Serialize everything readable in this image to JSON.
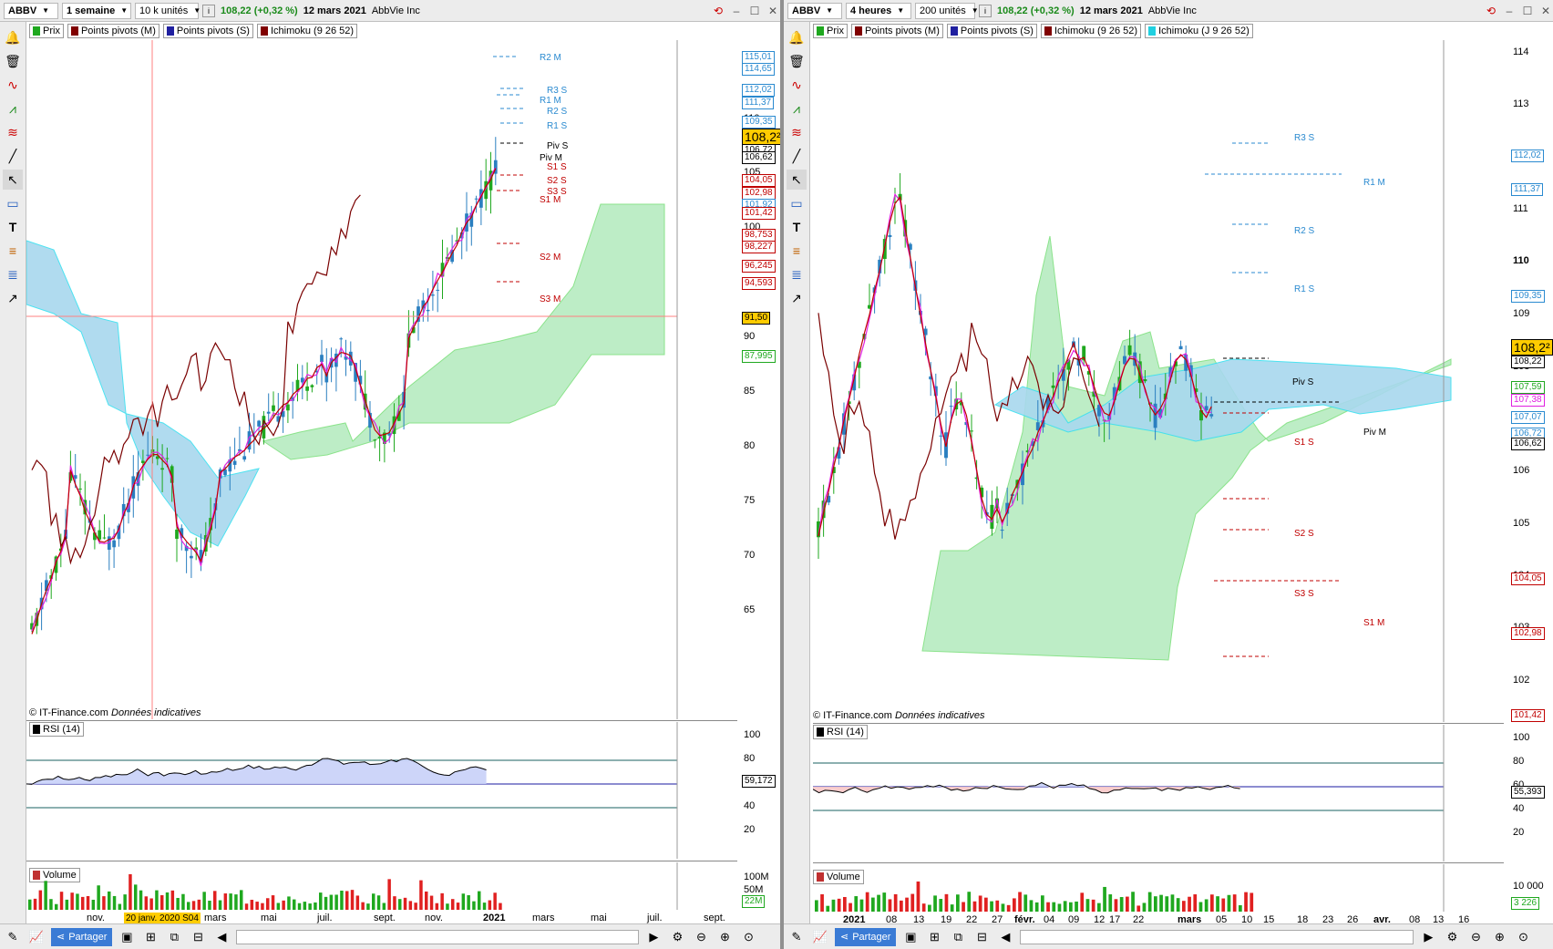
{
  "left": {
    "symbol": "ABBV",
    "timeframe": "1 semaine",
    "units": "10 k unités",
    "change": "108,22 (+0,32 %)",
    "date": "12 mars 2021",
    "name": "AbbVie Inc",
    "legend": [
      "Prix",
      "Points pivots (M)",
      "Points pivots (S)",
      "Ichimoku (9 26 52)"
    ],
    "price_axis": [
      "110",
      "105",
      "100",
      "95",
      "90",
      "85",
      "80",
      "75",
      "70",
      "65"
    ],
    "price_boxes": [
      "115,01",
      "114,65",
      "112,02",
      "111,37",
      "109,35",
      "108,2²",
      "106,72",
      "106,62",
      "104,05",
      "102,98",
      "101,92",
      "101,42",
      "98,753",
      "98,227",
      "96,245",
      "94,593",
      "91,50",
      "87,995"
    ],
    "pivot_labels": [
      "R2 M",
      "R3 S",
      "R1 M",
      "R2 S",
      "R1 S",
      "Piv S",
      "Piv M",
      "S1 S",
      "S2 S",
      "S3 S",
      "S1 M",
      "S2 M",
      "S3 M"
    ],
    "credit": "© IT-Finance.com",
    "credit_note": "Données indicatives",
    "rsi_label": "RSI (14)",
    "rsi_axis": [
      "100",
      "80",
      "60",
      "40",
      "20"
    ],
    "rsi_value": "59,172",
    "volume_label": "Volume",
    "volume_axis": [
      "100M",
      "50M"
    ],
    "volume_value": "22M",
    "x_axis": [
      "nov.",
      "janv.",
      "mars",
      "mai",
      "juil.",
      "sept.",
      "nov.",
      "2021",
      "mars",
      "mai",
      "juil.",
      "sept."
    ],
    "cursor_date": "20 janv. 2020 S04",
    "share_label": "Partager"
  },
  "right": {
    "symbol": "ABBV",
    "timeframe": "4 heures",
    "units": "200 unités",
    "change": "108,22 (+0,32 %)",
    "date": "12 mars 2021",
    "name": "AbbVie Inc",
    "legend": [
      "Prix",
      "Points pivots (M)",
      "Points pivots (S)",
      "Ichimoku (9 26 52)",
      "Ichimoku (J 9 26 52)"
    ],
    "price_axis": [
      "114",
      "113",
      "112",
      "111",
      "110",
      "109",
      "108",
      "107",
      "106",
      "105",
      "104",
      "103",
      "102"
    ],
    "price_boxes": [
      "112,02",
      "111,37",
      "109,35",
      "108,2²",
      "108,22",
      "107,59",
      "107,38",
      "107,07",
      "106,72",
      "106,62",
      "104,05",
      "102,98",
      "101,42"
    ],
    "pivot_labels": [
      "R3 S",
      "R1 M",
      "R2 S",
      "R1 S",
      "Piv S",
      "Piv M",
      "S1 S",
      "S2 S",
      "S3 S",
      "S1 M"
    ],
    "credit": "© IT-Finance.com",
    "credit_note": "Données indicatives",
    "rsi_label": "RSI (14)",
    "rsi_axis": [
      "100",
      "80",
      "60",
      "40",
      "20"
    ],
    "rsi_value": "55,393",
    "volume_label": "Volume",
    "volume_axis": [
      "10 000"
    ],
    "volume_value": "3 226",
    "x_axis": [
      "2021",
      "08",
      "13",
      "19",
      "22",
      "27",
      "févr.",
      "04",
      "09",
      "12",
      "17",
      "22",
      "mars",
      "05",
      "10",
      "15",
      "18",
      "23",
      "26",
      "avr.",
      "08",
      "13",
      "16"
    ],
    "share_label": "Partager"
  },
  "colors": {
    "bull": "#1fa81f",
    "bear": "#2a7fc0",
    "kijun": "#c00000",
    "tenkan": "#e020e0",
    "chikou": "#7a0000",
    "cloud_green": "#b6ecc0",
    "cloud_blue": "#a8d8ee",
    "price_tag": "#ffcc00"
  }
}
